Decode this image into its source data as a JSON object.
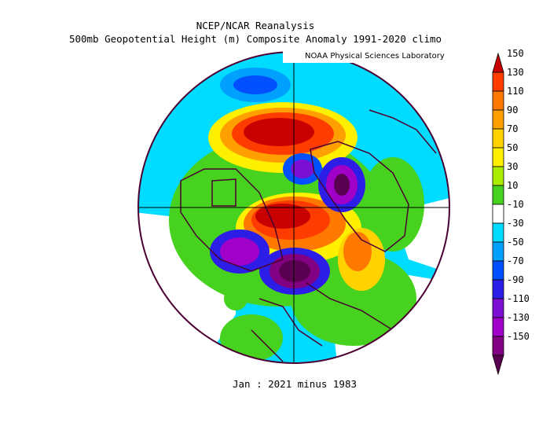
{
  "header": {
    "line1": "NCEP/NCAR Reanalysis",
    "line2": "500mb Geopotential Height (m) Composite Anomaly 1991-2020 climo",
    "credit": "NOAA Physical Sciences Laboratory"
  },
  "footer": {
    "period": "Jan : 2021 minus 1983"
  },
  "colorbar": {
    "labels": [
      "150",
      "130",
      "110",
      "90",
      "70",
      "50",
      "30",
      "10",
      "-10",
      "-30",
      "-50",
      "-70",
      "-90",
      "-110",
      "-130",
      "-150"
    ],
    "colors": [
      "#c80000",
      "#ff3c00",
      "#ff7800",
      "#ffa000",
      "#ffd200",
      "#fff000",
      "#aaeb00",
      "#46d21e",
      "#ffffff",
      "#00dcff",
      "#00a0ff",
      "#0050ff",
      "#2c1ee6",
      "#7b10d2",
      "#a000c8",
      "#820082",
      "#5a0050"
    ]
  },
  "legend_icons": [
    "arrow-up-icon",
    "arrow-down-icon"
  ]
}
